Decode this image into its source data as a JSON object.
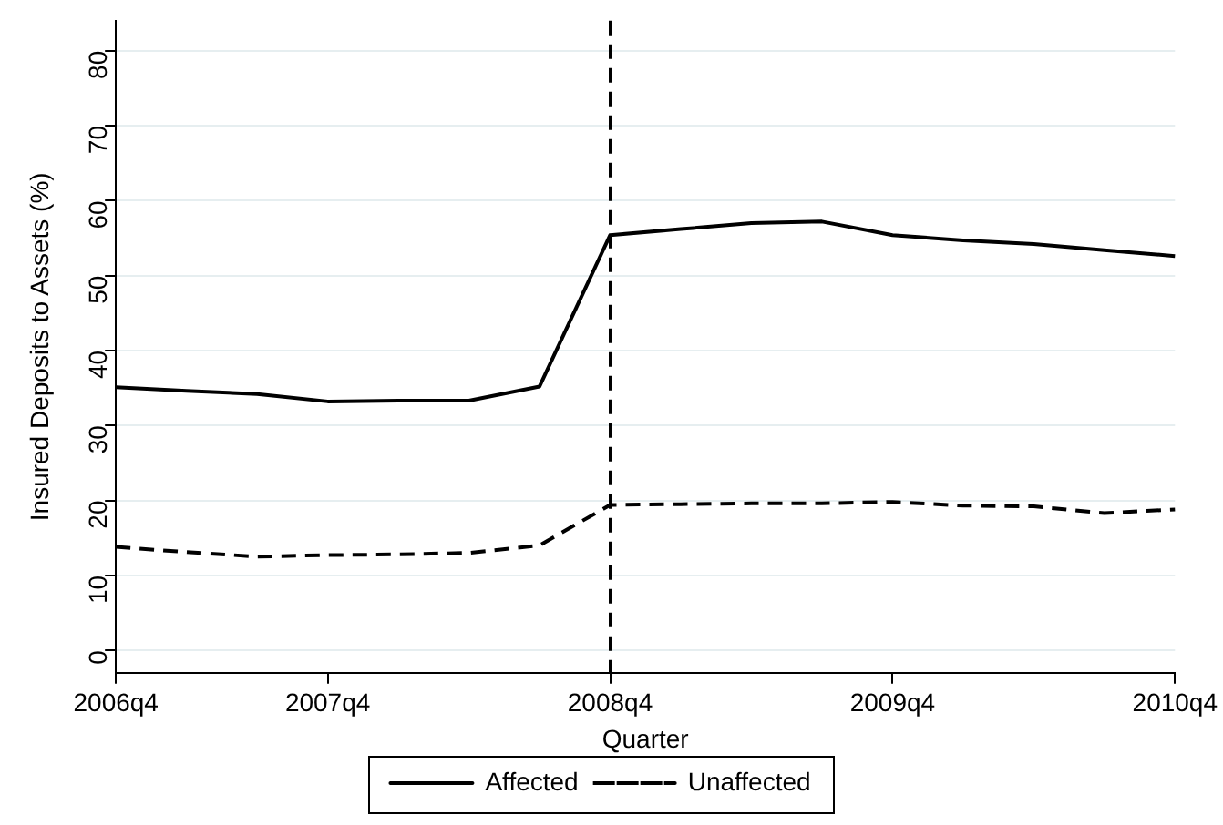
{
  "chart_data": {
    "type": "line",
    "xlabel": "Quarter",
    "ylabel": "Insured Deposits to Assets (%)",
    "categories": [
      "2006q4",
      null,
      null,
      "2007q4",
      null,
      null,
      null,
      "2008q4",
      null,
      null,
      null,
      "2009q4",
      null,
      null,
      null,
      "2010q4"
    ],
    "series": [
      {
        "name": "Affected",
        "color": "#000000",
        "line_style": "solid",
        "values": [
          35.1,
          34.6,
          34.2,
          33.2,
          33.3,
          33.3,
          35.2,
          55.4,
          56.2,
          57.0,
          57.2,
          55.4,
          54.7,
          54.2,
          53.4,
          52.6
        ]
      },
      {
        "name": "Unaffected",
        "color": "#000000",
        "line_style": "dashed",
        "values": [
          13.8,
          13.1,
          12.5,
          12.7,
          12.8,
          13.0,
          14.0,
          19.4,
          19.5,
          19.6,
          19.6,
          19.8,
          19.3,
          19.2,
          18.3,
          18.8
        ]
      }
    ],
    "ylim": [
      -3,
      84
    ],
    "yticks": [
      0,
      10,
      20,
      30,
      40,
      50,
      60,
      70,
      80
    ],
    "ref_lines": [
      {
        "axis": "x",
        "value": "2008q4",
        "color": "#000000",
        "line_style": "dashed"
      }
    ],
    "grid": "y",
    "legend": "bottom",
    "marker": "none"
  }
}
